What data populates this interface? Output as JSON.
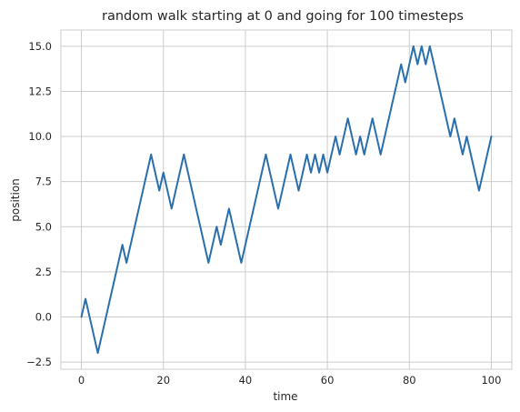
{
  "chart_data": {
    "type": "line",
    "title": "random walk starting at 0 and going for 100 timesteps",
    "xlabel": "time",
    "ylabel": "position",
    "xlim": [
      -5,
      105
    ],
    "ylim": [
      -2.9,
      15.9
    ],
    "xticks": [
      0,
      20,
      40,
      60,
      80,
      100
    ],
    "xtick_labels": [
      "0",
      "20",
      "40",
      "60",
      "80",
      "100"
    ],
    "yticks": [
      -2.5,
      0.0,
      2.5,
      5.0,
      7.5,
      10.0,
      12.5,
      15.0
    ],
    "ytick_labels": [
      "−2.5",
      "0.0",
      "2.5",
      "5.0",
      "7.5",
      "10.0",
      "12.5",
      "15.0"
    ],
    "grid": true,
    "series": [
      {
        "color": "#2a6fad",
        "x": [
          0,
          1,
          2,
          3,
          4,
          5,
          6,
          7,
          8,
          9,
          10,
          11,
          12,
          13,
          14,
          15,
          16,
          17,
          18,
          19,
          20,
          21,
          22,
          23,
          24,
          25,
          26,
          27,
          28,
          29,
          30,
          31,
          32,
          33,
          34,
          35,
          36,
          37,
          38,
          39,
          40,
          41,
          42,
          43,
          44,
          45,
          46,
          47,
          48,
          49,
          50,
          51,
          52,
          53,
          54,
          55,
          56,
          57,
          58,
          59,
          60,
          61,
          62,
          63,
          64,
          65,
          66,
          67,
          68,
          69,
          70,
          71,
          72,
          73,
          74,
          75,
          76,
          77,
          78,
          79,
          80,
          81,
          82,
          83,
          84,
          85,
          86,
          87,
          88,
          89,
          90,
          91,
          92,
          93,
          94,
          95,
          96,
          97,
          98,
          99,
          100
        ],
        "y": [
          0,
          1,
          0,
          -1,
          -2,
          -1,
          0,
          1,
          2,
          3,
          4,
          3,
          4,
          5,
          6,
          7,
          8,
          9,
          8,
          7,
          8,
          7,
          6,
          7,
          8,
          9,
          8,
          7,
          6,
          5,
          4,
          3,
          4,
          5,
          4,
          5,
          6,
          5,
          4,
          3,
          4,
          5,
          6,
          7,
          8,
          9,
          8,
          7,
          6,
          7,
          8,
          9,
          8,
          7,
          8,
          9,
          8,
          9,
          8,
          9,
          8,
          9,
          10,
          9,
          10,
          11,
          10,
          9,
          10,
          9,
          10,
          11,
          10,
          9,
          10,
          11,
          12,
          13,
          14,
          13,
          14,
          15,
          14,
          15,
          14,
          15,
          14,
          13,
          12,
          11,
          10,
          11,
          10,
          9,
          10,
          9,
          8,
          7,
          8,
          9,
          10
        ]
      }
    ]
  }
}
